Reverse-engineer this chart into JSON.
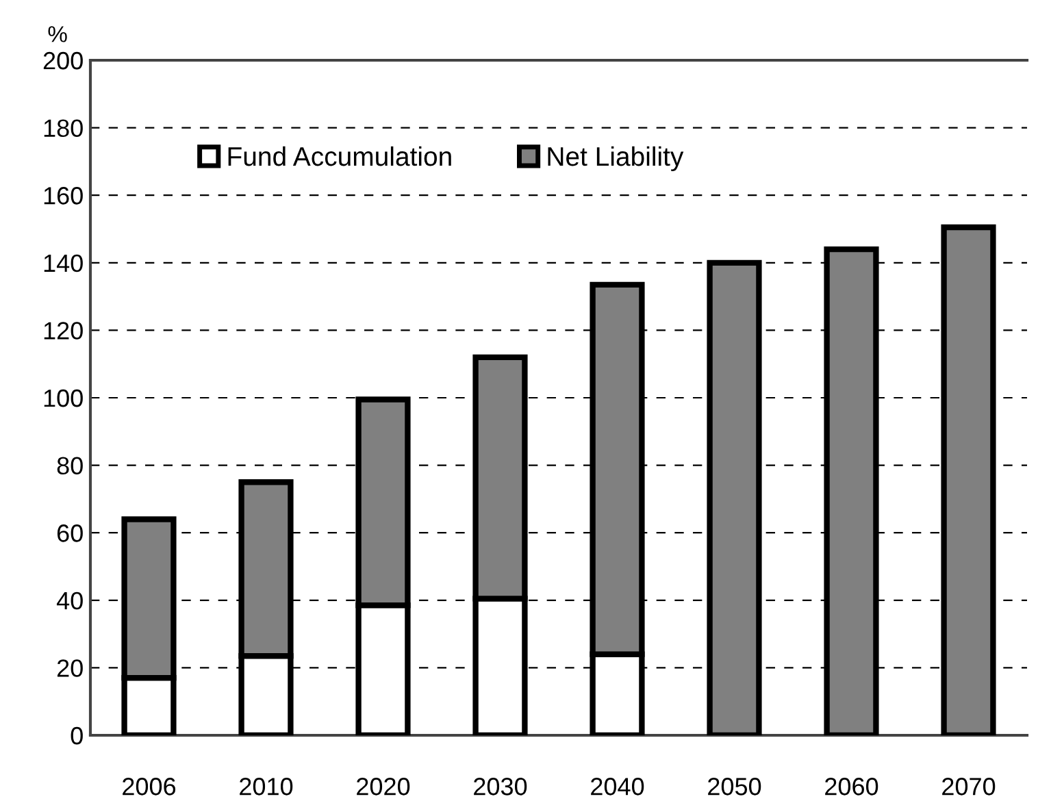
{
  "chart_data": {
    "type": "bar",
    "ylabel": "%",
    "categories": [
      "2006",
      "2010",
      "2020",
      "2030",
      "2040",
      "2050",
      "2060",
      "2070"
    ],
    "stacked": true,
    "series": [
      {
        "name": "Fund Accumulation",
        "color": "#ffffff",
        "values": [
          17,
          23.5,
          38.5,
          40.5,
          24,
          0,
          0,
          0
        ]
      },
      {
        "name": "Net Liability",
        "color": "#808080",
        "values": [
          47,
          51.5,
          61,
          71.5,
          109.5,
          140,
          144,
          150.5
        ]
      }
    ],
    "ylim": [
      0,
      200
    ],
    "yticks": [
      0,
      20,
      40,
      60,
      80,
      100,
      120,
      140,
      160,
      180,
      200
    ],
    "grid": "y",
    "legend": "top"
  }
}
